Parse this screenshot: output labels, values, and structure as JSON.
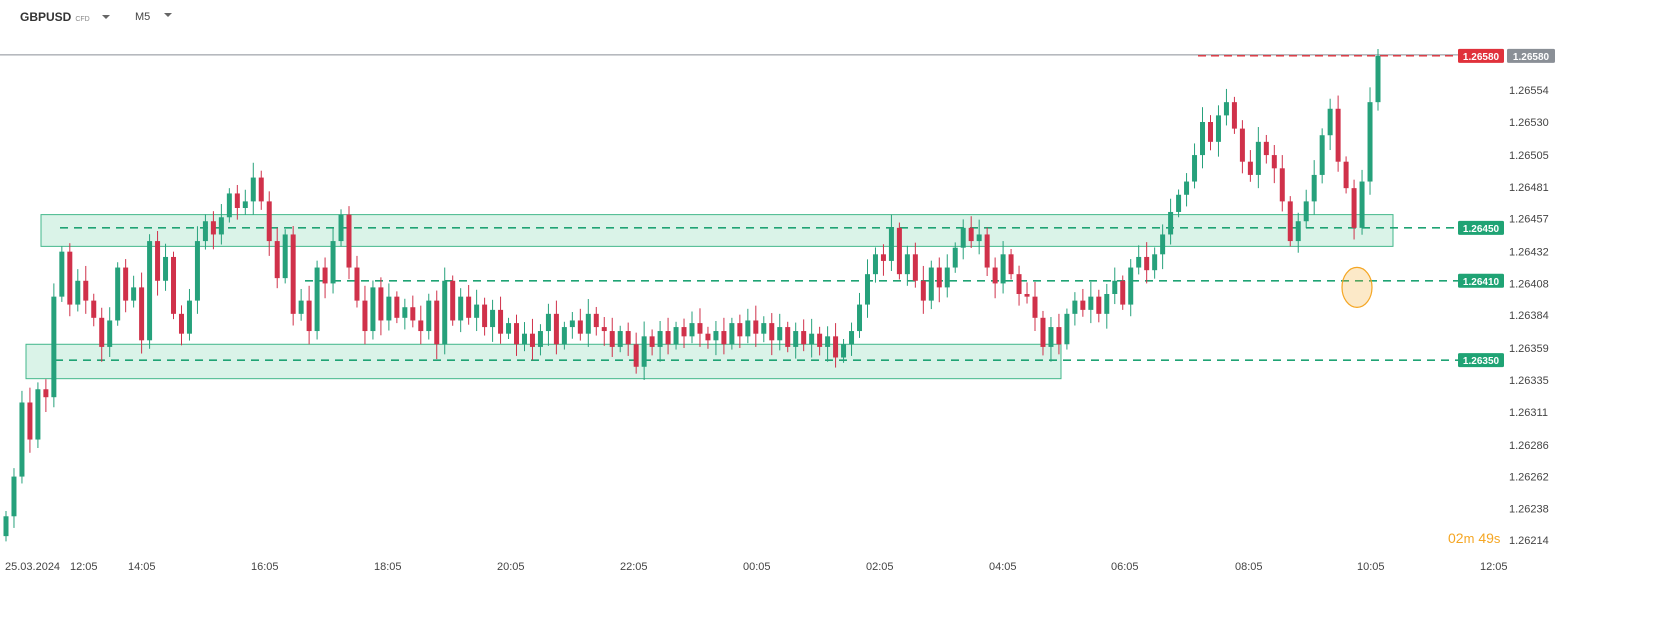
{
  "header": {
    "symbol": "GBPUSD",
    "symbol_type": "CFD",
    "timeframe": "M5"
  },
  "countdown": {
    "minutes": "02",
    "m": "m",
    "seconds": "49",
    "s": "s"
  },
  "colors": {
    "up": "#26a17b",
    "down": "#d0314a",
    "zone_fill": "#d6f2e6",
    "zone_stroke": "#2fb07f",
    "level_line": "#1fa374",
    "resistance": "#e0313b",
    "price_badge_gray": "#8a8f96",
    "highlight": "#f5a623"
  },
  "chart_data": {
    "type": "candlestick",
    "y_min": 1.26205,
    "y_max": 1.26595,
    "y_ticks": [
      "1.26214",
      "1.26238",
      "1.26262",
      "1.26286",
      "1.26311",
      "1.26335",
      "1.26359",
      "1.26384",
      "1.26408",
      "1.26432",
      "1.26457",
      "1.26481",
      "1.26505",
      "1.26530",
      "1.26554"
    ],
    "x_ticks": [
      "25.03.2024",
      "12:05",
      "14:05",
      "16:05",
      "18:05",
      "20:05",
      "22:05",
      "00:05",
      "02:05",
      "04:05",
      "06:05",
      "08:05",
      "10:05",
      "12:05"
    ],
    "current_price": "1.26580",
    "resistance_label": "1.26580",
    "levels": [
      {
        "label": "1.26450",
        "value": 1.2645
      },
      {
        "label": "1.26410",
        "value": 1.2641
      },
      {
        "label": "1.26350",
        "value": 1.2635
      }
    ],
    "zones": [
      {
        "low": 1.26436,
        "high": 1.2646
      },
      {
        "low": 1.26336,
        "high": 1.26362
      }
    ],
    "candles_close": [
      1.26232,
      1.26262,
      1.26318,
      1.2629,
      1.26328,
      1.26322,
      1.26398,
      1.26432,
      1.26392,
      1.2641,
      1.26395,
      1.26382,
      1.2636,
      1.2638,
      1.2642,
      1.26395,
      1.26405,
      1.26365,
      1.2644,
      1.2641,
      1.26428,
      1.26385,
      1.2637,
      1.26395,
      1.2644,
      1.26455,
      1.26445,
      1.26458,
      1.26476,
      1.26465,
      1.2647,
      1.26488,
      1.2647,
      1.2644,
      1.26412,
      1.26445,
      1.26385,
      1.26395,
      1.26372,
      1.2642,
      1.26408,
      1.2644,
      1.2646,
      1.2642,
      1.26395,
      1.26372,
      1.26405,
      1.2638,
      1.26398,
      1.26382,
      1.2639,
      1.2638,
      1.26372,
      1.26395,
      1.26362,
      1.2641,
      1.2638,
      1.26398,
      1.26382,
      1.26392,
      1.26375,
      1.26388,
      1.2637,
      1.26378,
      1.26362,
      1.2637,
      1.2636,
      1.26372,
      1.26385,
      1.26362,
      1.26375,
      1.2638,
      1.2637,
      1.26385,
      1.26375,
      1.26372,
      1.2636,
      1.26372,
      1.26362,
      1.26345,
      1.26368,
      1.2636,
      1.26372,
      1.26362,
      1.26375,
      1.26368,
      1.26378,
      1.2637,
      1.26365,
      1.26372,
      1.26362,
      1.26378,
      1.26368,
      1.2638,
      1.2637,
      1.26378,
      1.26365,
      1.26375,
      1.2636,
      1.26372,
      1.26362,
      1.2637,
      1.2636,
      1.26368,
      1.26352,
      1.26362,
      1.26372,
      1.26392,
      1.26415,
      1.2643,
      1.26425,
      1.2645,
      1.26415,
      1.2643,
      1.2641,
      1.26395,
      1.2642,
      1.26405,
      1.2642,
      1.26435,
      1.2645,
      1.2644,
      1.26445,
      1.2642,
      1.26408,
      1.2643,
      1.26415,
      1.264,
      1.26398,
      1.26382,
      1.2636,
      1.26375,
      1.26362,
      1.26385,
      1.26395,
      1.26388,
      1.26398,
      1.26385,
      1.264,
      1.2641,
      1.26392,
      1.2642,
      1.26428,
      1.26418,
      1.2643,
      1.26445,
      1.26462,
      1.26475,
      1.26485,
      1.26505,
      1.2653,
      1.26515,
      1.26535,
      1.26545,
      1.26525,
      1.265,
      1.2649,
      1.26515,
      1.26505,
      1.26495,
      1.2647,
      1.2644,
      1.26455,
      1.2647,
      1.2649,
      1.2652,
      1.2654,
      1.265,
      1.2648,
      1.2645,
      1.26485,
      1.26545,
      1.2658
    ]
  }
}
